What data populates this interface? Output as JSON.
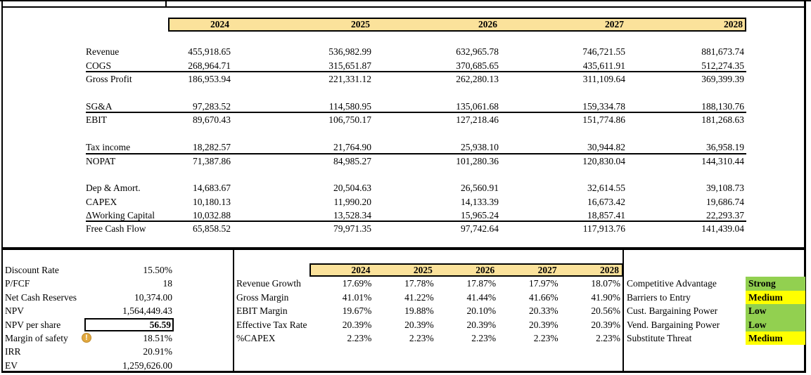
{
  "colors": {
    "header_fill": "#FBE29B",
    "strong_green": "#92D050",
    "medium_yellow": "#FFFF00",
    "warning_icon": "#E2A93F",
    "border": "#000000"
  },
  "icons": {
    "warning_glyph": "!"
  },
  "years": [
    "2024",
    "2025",
    "2026",
    "2027",
    "2028"
  ],
  "income_table": {
    "rows": [
      {
        "label": "Revenue",
        "values": [
          "455,918.65",
          "536,982.99",
          "632,965.78",
          "746,721.55",
          "881,673.74"
        ],
        "underline": false,
        "gap_before": 1
      },
      {
        "label": "COGS",
        "values": [
          "268,964.71",
          "315,651.87",
          "370,685.65",
          "435,611.91",
          "512,274.35"
        ],
        "underline": true,
        "gap_before": 0
      },
      {
        "label": "Gross Profit",
        "values": [
          "186,953.94",
          "221,331.12",
          "262,280.13",
          "311,109.64",
          "369,399.39"
        ],
        "underline": false,
        "gap_before": 0
      },
      {
        "label": "SG&A",
        "values": [
          "97,283.52",
          "114,580.95",
          "135,061.68",
          "159,334.78",
          "188,130.76"
        ],
        "underline": true,
        "gap_before": 1
      },
      {
        "label": "EBIT",
        "values": [
          "89,670.43",
          "106,750.17",
          "127,218.46",
          "151,774.86",
          "181,268.63"
        ],
        "underline": false,
        "gap_before": 0
      },
      {
        "label": "Tax income",
        "values": [
          "18,282.57",
          "21,764.90",
          "25,938.10",
          "30,944.82",
          "36,958.19"
        ],
        "underline": true,
        "gap_before": 1
      },
      {
        "label": "NOPAT",
        "values": [
          "71,387.86",
          "84,985.27",
          "101,280.36",
          "120,830.04",
          "144,310.44"
        ],
        "underline": false,
        "gap_before": 0
      },
      {
        "label": "Dep & Amort.",
        "values": [
          "14,683.67",
          "20,504.63",
          "26,560.91",
          "32,614.55",
          "39,108.73"
        ],
        "underline": false,
        "gap_before": 1
      },
      {
        "label": "CAPEX",
        "values": [
          "10,180.13",
          "11,990.20",
          "14,133.39",
          "16,673.42",
          "19,686.74"
        ],
        "underline": false,
        "gap_before": 0
      },
      {
        "label": "ΔWorking Capital",
        "values": [
          "10,032.88",
          "13,528.34",
          "15,965.24",
          "18,857.41",
          "22,293.37"
        ],
        "underline": true,
        "gap_before": 0
      },
      {
        "label": "Free Cash Flow",
        "values": [
          "65,858.52",
          "79,971.35",
          "97,742.64",
          "117,913.76",
          "141,439.04"
        ],
        "underline": false,
        "gap_before": 0
      }
    ]
  },
  "valuation": {
    "rows": [
      {
        "label": "Discount Rate",
        "value": "15.50%",
        "boxed": false,
        "warning": false
      },
      {
        "label": "P/FCF",
        "value": "18",
        "boxed": false,
        "warning": false
      },
      {
        "label": "Net Cash Reserves",
        "value": "10,374.00",
        "boxed": false,
        "warning": false
      },
      {
        "label": "NPV",
        "value": "1,564,449.43",
        "boxed": false,
        "warning": false
      },
      {
        "label": "NPV per share",
        "value": "56.59",
        "boxed": true,
        "warning": false
      },
      {
        "label": "Margin of safety",
        "value": "18.51%",
        "boxed": false,
        "warning": true
      },
      {
        "label": "IRR",
        "value": "20.91%",
        "boxed": false,
        "warning": false
      },
      {
        "label": "EV",
        "value": "1,259,626.00",
        "boxed": false,
        "warning": false
      }
    ]
  },
  "ratios_table": {
    "rows": [
      {
        "label": "Revenue Growth",
        "values": [
          "17.69%",
          "17.78%",
          "17.87%",
          "17.97%",
          "18.07%"
        ]
      },
      {
        "label": "Gross Margin",
        "values": [
          "41.01%",
          "41.22%",
          "41.44%",
          "41.66%",
          "41.90%"
        ]
      },
      {
        "label": "EBIT Margin",
        "values": [
          "19.67%",
          "19.88%",
          "20.10%",
          "20.33%",
          "20.56%"
        ]
      },
      {
        "label": "Effective Tax Rate",
        "values": [
          "20.39%",
          "20.39%",
          "20.39%",
          "20.39%",
          "20.39%"
        ]
      },
      {
        "label": "%CAPEX",
        "values": [
          "2.23%",
          "2.23%",
          "2.23%",
          "2.23%",
          "2.23%"
        ]
      }
    ]
  },
  "porter": {
    "rows": [
      {
        "label": "Competitive Advantage",
        "value": "Strong",
        "level": "strong_green"
      },
      {
        "label": "Barriers to Entry",
        "value": "Medium",
        "level": "medium_yellow"
      },
      {
        "label": "Cust. Bargaining Power",
        "value": "Low",
        "level": "strong_green"
      },
      {
        "label": "Vend. Bargaining Power",
        "value": "Low",
        "level": "strong_green"
      },
      {
        "label": "Substitute Threat",
        "value": "Medium",
        "level": "medium_yellow"
      }
    ]
  }
}
